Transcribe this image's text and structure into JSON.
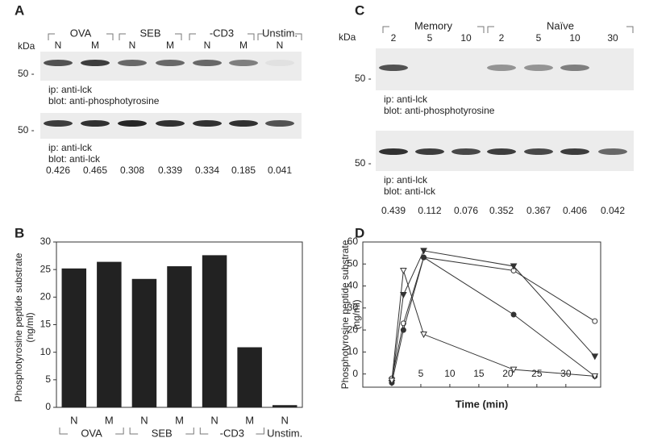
{
  "panel_A": {
    "label": "A",
    "kda": "kDa",
    "groups": [
      "OVA",
      "SEB",
      "-CD3",
      "Unstim."
    ],
    "lanes": [
      "N",
      "M",
      "N",
      "M",
      "N",
      "M",
      "N"
    ],
    "blots": [
      {
        "marker": "50 -",
        "ip": "ip:  anti-lck",
        "blot": "blot:  anti-phosphotyrosine"
      },
      {
        "marker": "50 -",
        "ip": "ip:  anti-lck",
        "blot": "blot:  anti-lck"
      }
    ],
    "values": [
      0.426,
      0.465,
      0.308,
      0.339,
      0.334,
      0.185,
      0.041
    ]
  },
  "panel_C": {
    "label": "C",
    "kda": "kDa",
    "groups": [
      "Memory",
      "Naïve"
    ],
    "lanes": [
      2,
      5,
      10,
      2,
      5,
      10,
      30
    ],
    "blots": [
      {
        "marker": "50 -",
        "ip": "ip:  anti-lck",
        "blot": "blot:  anti-phosphotyrosine"
      },
      {
        "marker": "50 -",
        "ip": "ip:  anti-lck",
        "blot": "blot:  anti-lck"
      }
    ],
    "values": [
      0.439,
      0.112,
      0.076,
      0.352,
      0.367,
      0.406,
      0.042
    ]
  },
  "chart_data": [
    {
      "type": "bar",
      "panel": "B",
      "ylabel": "Phosphotyrosine peptide substrate (ng/ml)",
      "categories": [
        "N",
        "M",
        "N",
        "M",
        "N",
        "M",
        "N"
      ],
      "groups": [
        "OVA",
        "SEB",
        "-CD3",
        "Unstim."
      ],
      "values": [
        25.2,
        26.4,
        23.3,
        25.6,
        27.6,
        10.9,
        0.4
      ],
      "color": "#222222",
      "ylim": [
        0,
        30
      ],
      "yticks": [
        0,
        5,
        10,
        15,
        20,
        25,
        30
      ]
    },
    {
      "type": "line",
      "panel": "D",
      "ylabel": "Phosphotyrosine peptide substrate (ng/ml)",
      "xlabel": "Time (min)",
      "x": [
        0,
        2,
        5.5,
        21,
        35
      ],
      "series": [
        {
          "marker": "circle-open",
          "color": "#333333",
          "values": [
            -2,
            23,
            53,
            47,
            24
          ]
        },
        {
          "marker": "circle-filled",
          "color": "#333333",
          "values": [
            -4,
            20,
            53,
            27,
            -1
          ]
        },
        {
          "marker": "triangle-filled",
          "color": "#333333",
          "values": [
            -4,
            36,
            56,
            49,
            8
          ]
        },
        {
          "marker": "triangle-open",
          "color": "#333333",
          "values": [
            -3,
            47,
            18,
            2,
            -1
          ]
        }
      ],
      "xlim": [
        -5,
        36
      ],
      "xticks": [
        5,
        10,
        15,
        20,
        25,
        30
      ],
      "ylim": [
        -6,
        60
      ],
      "yticks": [
        0,
        10,
        20,
        30,
        40,
        50,
        60
      ]
    }
  ]
}
